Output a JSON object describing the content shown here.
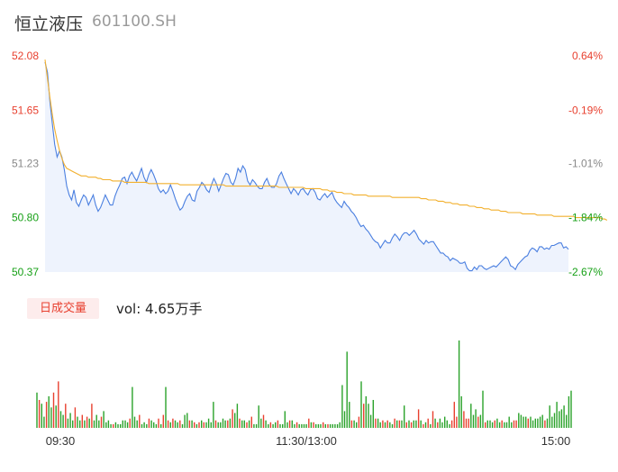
{
  "stock": {
    "name": "恒立液压",
    "code": "601100.SH"
  },
  "volume_panel": {
    "badge_label": "日成交量",
    "vol_text": "vol: 4.65万手"
  },
  "colors": {
    "price_line": "#4a7fe0",
    "avg_line": "#f2b02e",
    "up": "#e8402f",
    "down": "#2aa22a",
    "area": "#eef3fd"
  },
  "chart_data": [
    {
      "type": "line",
      "title": "",
      "x_ticks": [
        "09:30",
        "11:30/13:00",
        "15:00"
      ],
      "ylim": [
        50.37,
        52.08
      ],
      "y_ticks": [
        52.08,
        51.65,
        51.23,
        50.8,
        50.37
      ],
      "y_tick_labels": [
        "52.08",
        "51.65",
        "51.23",
        "50.80",
        "50.37"
      ],
      "pct_ticks": [
        "0.64%",
        "-0.19%",
        "-1.01%",
        "-1.84%",
        "-2.67%"
      ],
      "pct_colors": [
        "up",
        "up",
        "neutral",
        "down",
        "down"
      ],
      "series": [
        {
          "role": "price",
          "values": [
            52.03,
            51.95,
            51.72,
            51.55,
            51.38,
            51.28,
            51.33,
            51.28,
            51.18,
            51.05,
            50.98,
            50.94,
            51.02,
            50.92,
            50.89,
            50.94,
            50.98,
            50.96,
            50.9,
            50.94,
            50.98,
            50.9,
            50.85,
            50.88,
            50.93,
            50.98,
            50.94,
            50.9,
            50.9,
            50.97,
            51.02,
            51.06,
            51.11,
            51.12,
            51.07,
            51.13,
            51.16,
            51.12,
            51.09,
            51.14,
            51.19,
            51.12,
            51.08,
            51.14,
            51.18,
            51.14,
            51.09,
            51.03,
            51.0,
            51.02,
            50.99,
            51.01,
            51.06,
            51.01,
            50.95,
            50.9,
            50.86,
            50.88,
            50.93,
            50.97,
            50.99,
            50.94,
            50.93,
            51.01,
            51.04,
            51.08,
            51.06,
            51.02,
            51.0,
            51.06,
            51.11,
            51.07,
            51.01,
            51.06,
            51.11,
            51.15,
            51.14,
            51.08,
            51.06,
            51.11,
            51.19,
            51.16,
            51.21,
            51.18,
            51.09,
            51.06,
            51.1,
            51.08,
            51.05,
            51.03,
            51.03,
            51.08,
            51.11,
            51.06,
            51.04,
            51.04,
            51.07,
            51.13,
            51.16,
            51.11,
            51.07,
            51.03,
            50.99,
            51.03,
            51.01,
            50.98,
            51.02,
            51.03,
            51.0,
            50.98,
            51.02,
            51.03,
            51.0,
            50.95,
            50.94,
            50.97,
            50.99,
            50.96,
            50.98,
            51.0,
            50.95,
            50.92,
            50.9,
            50.88,
            50.93,
            50.9,
            50.88,
            50.85,
            50.83,
            50.8,
            50.76,
            50.73,
            50.74,
            50.71,
            50.69,
            50.66,
            50.63,
            50.61,
            50.6,
            50.56,
            50.59,
            50.62,
            50.6,
            50.6,
            50.64,
            50.67,
            50.65,
            50.62,
            50.66,
            50.68,
            50.68,
            50.66,
            50.68,
            50.7,
            50.67,
            50.63,
            50.61,
            50.59,
            50.62,
            50.6,
            50.61,
            50.61,
            50.58,
            50.55,
            50.52,
            50.52,
            50.5,
            50.49,
            50.46,
            50.48,
            50.47,
            50.46,
            50.44,
            50.44,
            50.45,
            50.4,
            50.38,
            50.38,
            50.41,
            50.39,
            50.42,
            50.42,
            50.4,
            50.39,
            50.4,
            50.41,
            50.42,
            50.41,
            50.43,
            50.45,
            50.47,
            50.49,
            50.47,
            50.42,
            50.41,
            50.39,
            50.43,
            50.45,
            50.47,
            50.49,
            50.5,
            50.54,
            50.56,
            50.55,
            50.53,
            50.57,
            50.57,
            50.55,
            50.56,
            50.55,
            50.58,
            50.58,
            50.59,
            50.6,
            50.6,
            50.56,
            50.57,
            50.55
          ]
        },
        {
          "role": "average",
          "values": [
            52.05,
            51.9,
            51.75,
            51.62,
            51.5,
            51.41,
            51.33,
            51.27,
            51.22,
            51.19,
            51.18,
            51.17,
            51.16,
            51.15,
            51.14,
            51.13,
            51.13,
            51.13,
            51.12,
            51.12,
            51.12,
            51.12,
            51.11,
            51.11,
            51.1,
            51.1,
            51.1,
            51.1,
            51.09,
            51.09,
            51.09,
            51.09,
            51.09,
            51.08,
            51.08,
            51.08,
            51.08,
            51.08,
            51.08,
            51.08,
            51.08,
            51.08,
            51.08,
            51.07,
            51.07,
            51.07,
            51.07,
            51.07,
            51.07,
            51.07,
            51.07,
            51.07,
            51.07,
            51.07,
            51.07,
            51.07,
            51.06,
            51.06,
            51.06,
            51.06,
            51.06,
            51.06,
            51.06,
            51.06,
            51.06,
            51.06,
            51.06,
            51.06,
            51.06,
            51.06,
            51.06,
            51.06,
            51.06,
            51.06,
            51.06,
            51.05,
            51.05,
            51.05,
            51.05,
            51.05,
            51.05,
            51.05,
            51.05,
            51.05,
            51.05,
            51.05,
            51.05,
            51.05,
            51.05,
            51.05,
            51.05,
            51.05,
            51.05,
            51.05,
            51.05,
            51.05,
            51.05,
            51.04,
            51.04,
            51.04,
            51.04,
            51.04,
            51.04,
            51.04,
            51.04,
            51.04,
            51.04,
            51.04,
            51.03,
            51.03,
            51.03,
            51.03,
            51.03,
            51.03,
            51.03,
            51.02,
            51.02,
            51.02,
            51.01,
            51.01,
            51.01,
            51.0,
            51.0,
            51.0,
            50.99,
            50.99,
            50.99,
            50.99,
            50.98,
            50.98,
            50.98,
            50.98,
            50.98,
            50.98,
            50.97,
            50.97,
            50.97,
            50.97,
            50.97,
            50.97,
            50.97,
            50.97,
            50.97,
            50.97,
            50.96,
            50.96,
            50.96,
            50.96,
            50.96,
            50.96,
            50.96,
            50.96,
            50.96,
            50.96,
            50.96,
            50.96,
            50.95,
            50.95,
            50.95,
            50.94,
            50.94,
            50.94,
            50.94,
            50.93,
            50.93,
            50.93,
            50.92,
            50.92,
            50.92,
            50.91,
            50.91,
            50.91,
            50.9,
            50.9,
            50.9,
            50.9,
            50.89,
            50.89,
            50.89,
            50.88,
            50.88,
            50.88,
            50.87,
            50.87,
            50.87,
            50.86,
            50.86,
            50.86,
            50.86,
            50.85,
            50.85,
            50.85,
            50.84,
            50.84,
            50.84,
            50.84,
            50.84,
            50.84,
            50.83,
            50.83,
            50.83,
            50.83,
            50.83,
            50.83,
            50.82,
            50.82,
            50.82,
            50.82,
            50.82,
            50.82,
            50.82,
            50.81,
            50.81,
            50.81,
            50.81,
            50.81,
            50.81,
            50.81,
            50.81,
            50.81,
            50.8,
            50.8,
            50.8,
            50.8,
            50.8,
            50.8,
            50.8,
            50.8,
            50.8,
            50.8,
            50.8,
            50.79,
            50.79,
            50.78
          ]
        }
      ]
    },
    {
      "type": "bar",
      "title": "",
      "series": [
        {
          "name": "vol",
          "values": [
            38,
            30,
            26,
            12,
            28,
            34,
            22,
            38,
            24,
            50,
            18,
            14,
            26,
            10,
            16,
            8,
            22,
            12,
            8,
            14,
            8,
            12,
            10,
            26,
            8,
            14,
            8,
            12,
            18,
            6,
            8,
            4,
            4,
            6,
            4,
            4,
            8,
            8,
            6,
            10,
            44,
            12,
            8,
            14,
            4,
            6,
            4,
            10,
            8,
            6,
            4,
            10,
            4,
            14,
            44,
            8,
            6,
            10,
            8,
            6,
            8,
            4,
            14,
            16,
            8,
            8,
            6,
            4,
            6,
            8,
            6,
            6,
            10,
            6,
            28,
            8,
            6,
            6,
            10,
            8,
            8,
            10,
            20,
            16,
            26,
            10,
            8,
            8,
            6,
            8,
            12,
            4,
            4,
            24,
            10,
            14,
            8,
            4,
            6,
            4,
            6,
            8,
            4,
            4,
            18,
            6,
            8,
            8,
            4,
            6,
            4,
            4,
            4,
            4,
            10,
            6,
            6,
            4,
            4,
            4,
            6,
            4,
            4,
            4,
            4,
            4,
            4,
            6,
            46,
            18,
            82,
            28,
            8,
            8,
            6,
            12,
            50,
            26,
            34,
            26,
            14,
            30,
            10,
            10,
            6,
            8,
            6,
            8,
            6,
            4,
            10,
            8,
            8,
            8,
            24,
            6,
            8,
            6,
            8,
            8,
            20,
            8,
            4,
            6,
            10,
            4,
            18,
            10,
            6,
            10,
            6,
            12,
            8,
            4,
            8,
            28,
            12,
            94,
            34,
            18,
            10,
            10,
            26,
            14,
            20,
            12,
            14,
            40,
            6,
            8,
            8,
            6,
            8,
            10,
            6,
            8,
            6,
            6,
            12,
            6,
            8,
            8,
            16,
            14,
            12,
            12,
            10,
            12,
            8,
            10,
            10,
            12,
            14,
            8,
            10,
            24,
            12,
            16,
            28,
            18,
            20,
            24,
            14,
            34,
            40
          ]
        }
      ],
      "bar_colors": [
        "down",
        "up",
        "down",
        "down",
        "up",
        "down",
        "down",
        "up",
        "down",
        "up",
        "down",
        "down",
        "up",
        "down",
        "down",
        "down",
        "up",
        "down",
        "down",
        "up",
        "down",
        "up",
        "down",
        "up",
        "down",
        "down",
        "down",
        "up",
        "down",
        "down",
        "down",
        "down",
        "up",
        "down",
        "down",
        "down",
        "down",
        "down",
        "down",
        "up",
        "down",
        "down",
        "down",
        "up",
        "down",
        "down",
        "down",
        "up",
        "down",
        "down",
        "down",
        "up",
        "down",
        "up",
        "down",
        "up",
        "down",
        "up",
        "down",
        "down",
        "up",
        "down",
        "down",
        "down",
        "up",
        "down",
        "up",
        "down",
        "up",
        "down",
        "up",
        "down",
        "down",
        "down",
        "down",
        "up",
        "down",
        "down",
        "down",
        "down",
        "up",
        "down",
        "up",
        "down",
        "down",
        "up",
        "down",
        "down",
        "up",
        "down",
        "up",
        "down",
        "down",
        "down",
        "down",
        "up",
        "down",
        "down",
        "up",
        "down",
        "down",
        "up",
        "down",
        "down",
        "down",
        "down",
        "up",
        "down",
        "down",
        "up",
        "down",
        "down",
        "down",
        "down",
        "up",
        "down",
        "up",
        "down",
        "down",
        "down",
        "up",
        "down",
        "up",
        "down",
        "down",
        "down",
        "down",
        "down",
        "down",
        "down",
        "down",
        "down",
        "up",
        "down",
        "down",
        "up",
        "down",
        "up",
        "down",
        "down",
        "down",
        "down",
        "up",
        "down",
        "down",
        "up",
        "down",
        "up",
        "down",
        "down",
        "up",
        "down",
        "up",
        "down",
        "down",
        "up",
        "down",
        "up",
        "down",
        "down",
        "up",
        "down",
        "up",
        "down",
        "up",
        "down",
        "up",
        "down",
        "up",
        "down",
        "down",
        "down",
        "down",
        "down",
        "up",
        "up",
        "up",
        "down",
        "down",
        "up",
        "up",
        "up",
        "down",
        "down",
        "down",
        "up",
        "down",
        "down",
        "up",
        "down",
        "down",
        "down",
        "up",
        "down",
        "down",
        "up",
        "down",
        "down",
        "down",
        "down",
        "up",
        "up",
        "down",
        "down",
        "down",
        "down",
        "up",
        "down",
        "down",
        "down",
        "down",
        "down",
        "down",
        "up"
      ]
    }
  ]
}
